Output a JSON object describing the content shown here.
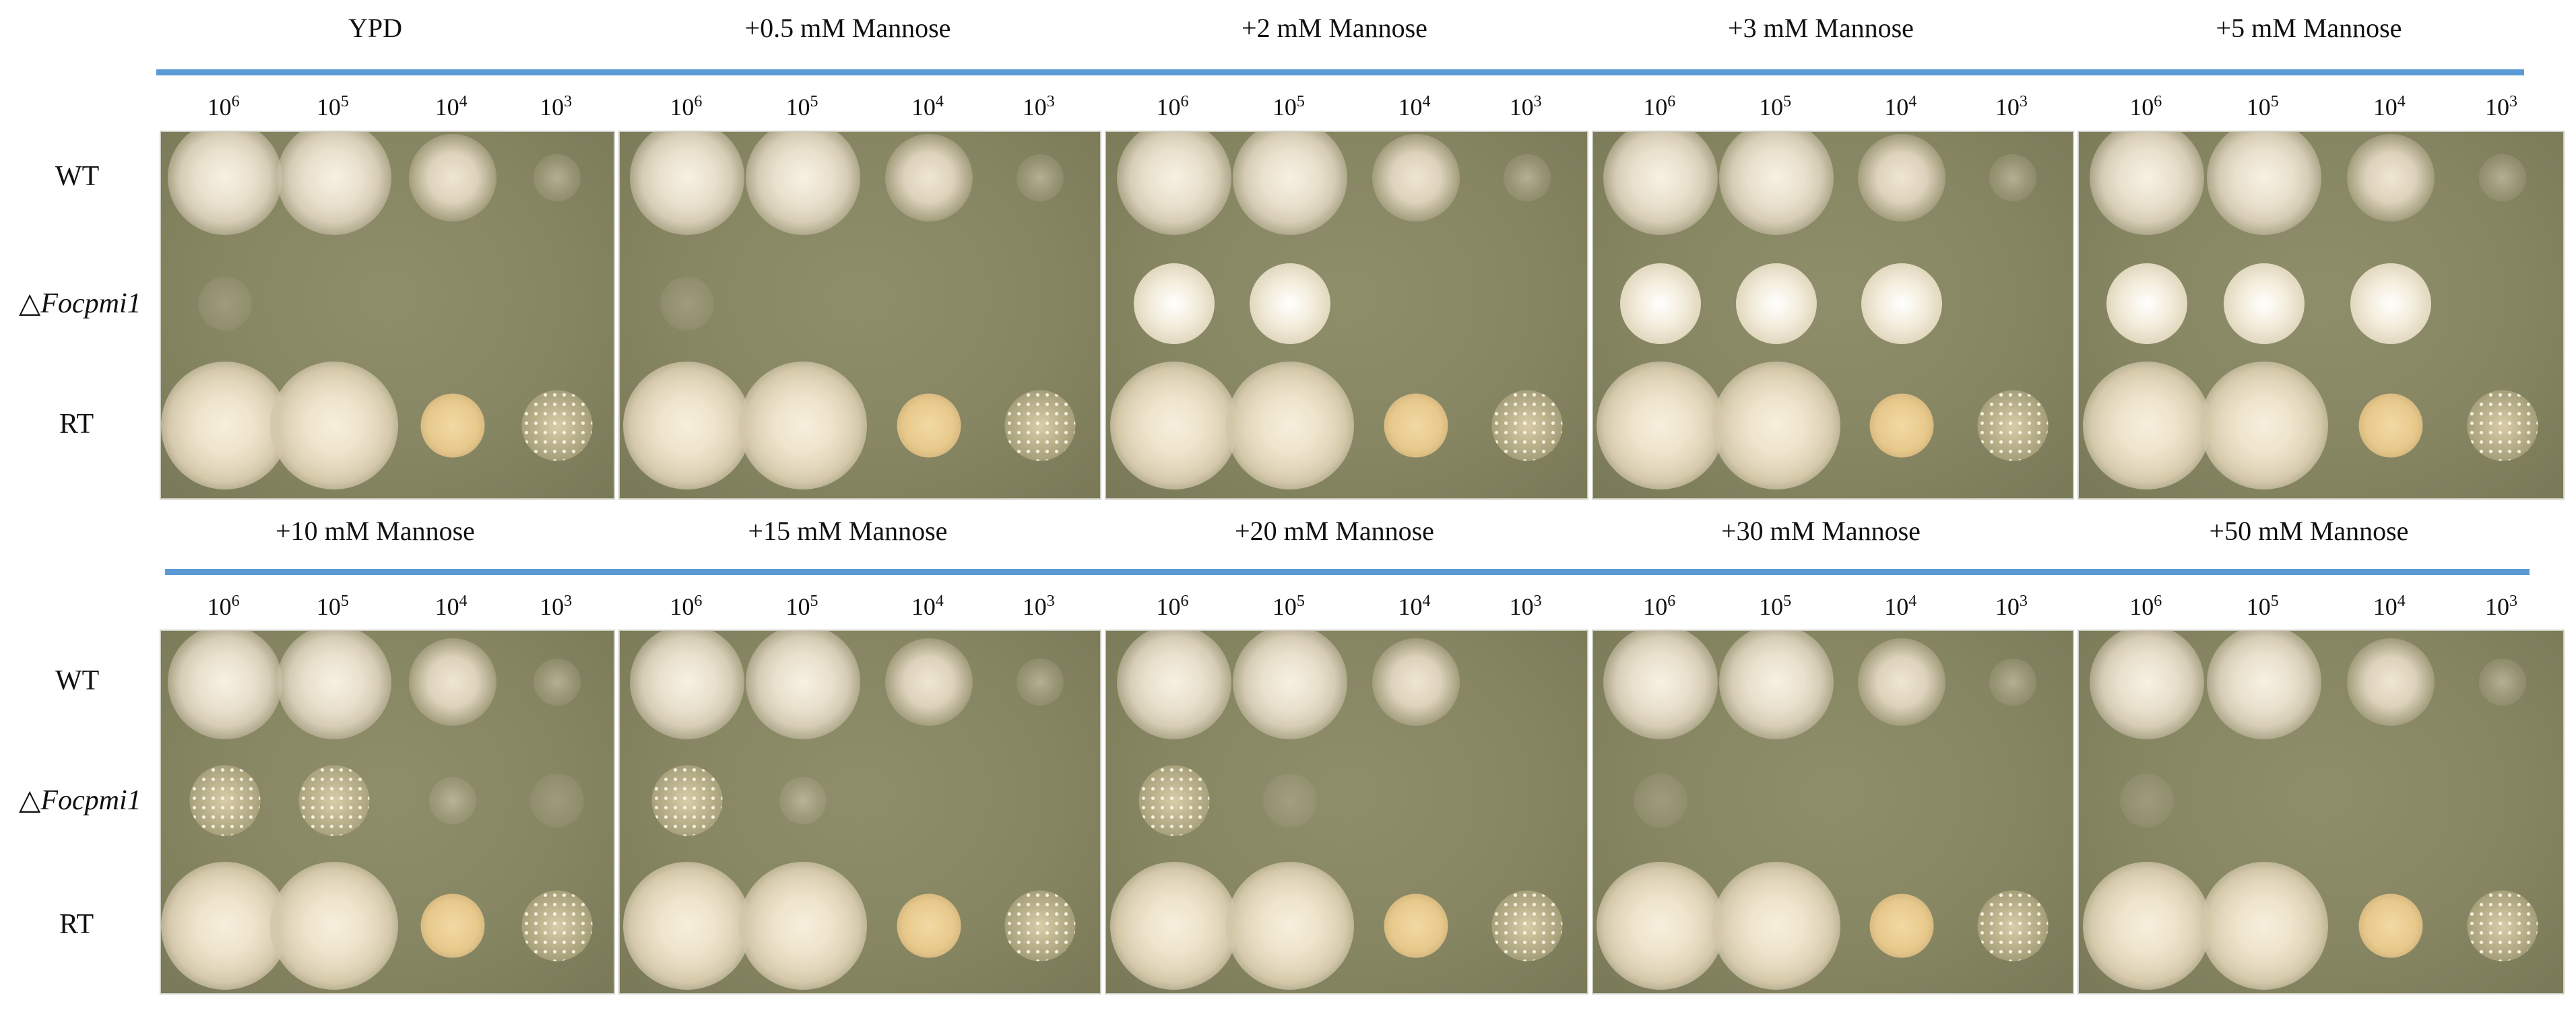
{
  "conditions_top": [
    "YPD",
    "+0.5 mM Mannose",
    "+2 mM Mannose",
    "+3 mM Mannose",
    "+5 mM Mannose"
  ],
  "conditions_bottom": [
    "+10 mM Mannose",
    "+15 mM Mannose",
    "+20 mM Mannose",
    "+30 mM Mannose",
    "+50 mM Mannose"
  ],
  "dilution_base": "10",
  "dilution_exponents": [
    "6",
    "5",
    "4",
    "3"
  ],
  "strains": [
    "WT",
    "△",
    "Focpmi1",
    "RT"
  ],
  "colors": {
    "separator": "#5b9bd5",
    "agar": "#878663"
  }
}
